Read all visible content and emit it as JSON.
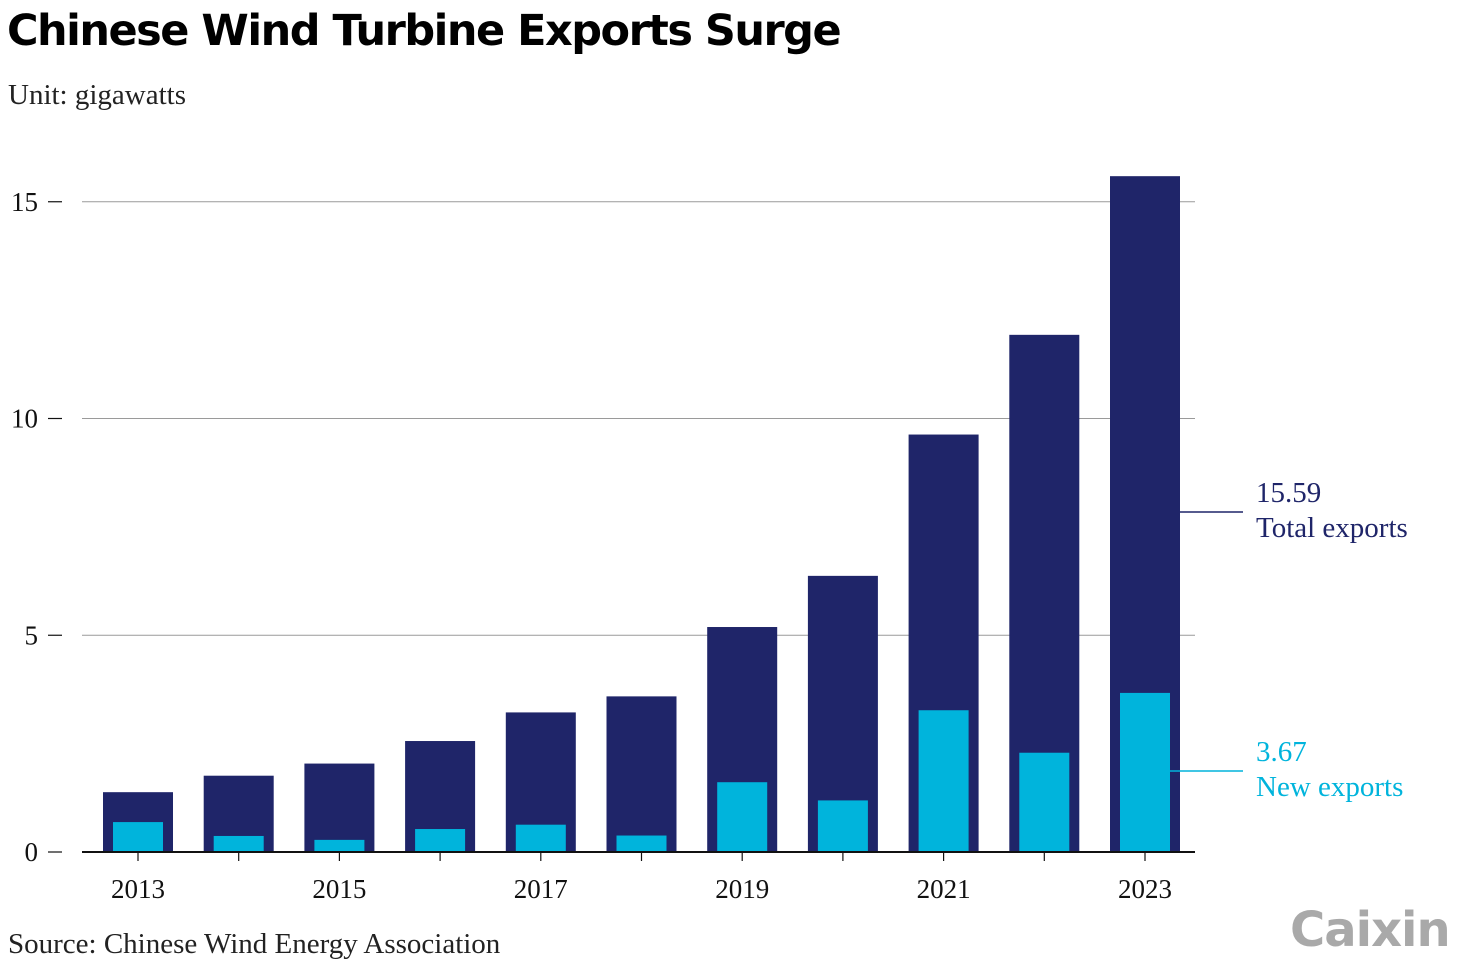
{
  "title": "Chinese Wind Turbine Exports Surge",
  "subtitle": "Unit: gigawatts",
  "source": "Source: Chinese Wind Energy Association",
  "logo": "Caixin",
  "colors": {
    "total": "#1f2569",
    "new": "#00b4dc",
    "grid": "#9a9a9a",
    "axis": "#111111"
  },
  "chart_data": {
    "type": "bar",
    "categories": [
      "2013",
      "2014",
      "2015",
      "2016",
      "2017",
      "2018",
      "2019",
      "2020",
      "2021",
      "2022",
      "2023"
    ],
    "x_tick_labels": [
      "2013",
      "2015",
      "2017",
      "2019",
      "2021",
      "2023"
    ],
    "y_ticks": [
      0,
      5,
      10,
      15
    ],
    "ylim": [
      0,
      16
    ],
    "grid": true,
    "series": [
      {
        "name": "Total exports",
        "values": [
          1.38,
          1.76,
          2.04,
          2.56,
          3.22,
          3.59,
          5.19,
          6.37,
          9.63,
          11.93,
          15.59
        ]
      },
      {
        "name": "New exports",
        "values": [
          0.69,
          0.37,
          0.28,
          0.53,
          0.63,
          0.38,
          1.61,
          1.19,
          3.27,
          2.29,
          3.67
        ]
      }
    ],
    "annotations": [
      {
        "value": "15.59",
        "label": "Total exports"
      },
      {
        "value": "3.67",
        "label": "New exports"
      }
    ]
  }
}
